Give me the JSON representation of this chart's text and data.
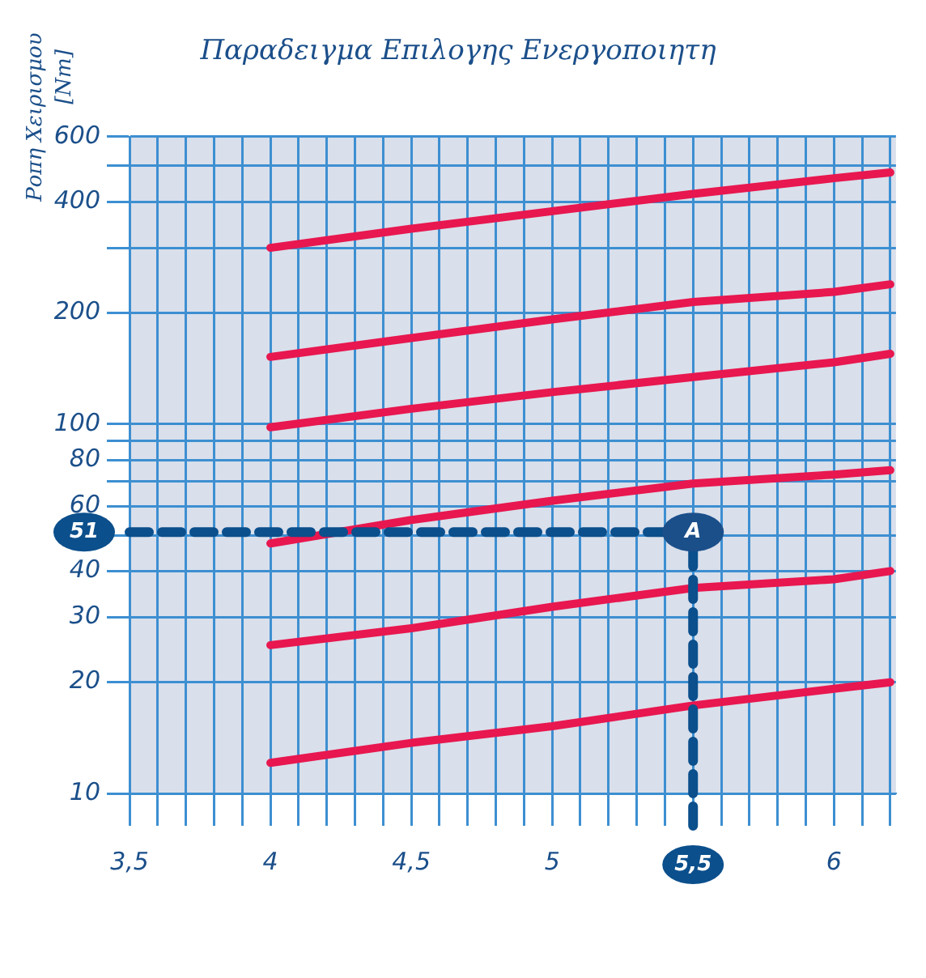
{
  "chart_data": {
    "type": "line",
    "title": "Παραδειγμα Επιλογης Ενεργοποιητη",
    "ylabel": "Ροπη Χειρισμου [Nm]",
    "x": [
      4,
      4.5,
      5,
      5.5,
      6,
      6.2
    ],
    "series": [
      {
        "color": "#e8174f",
        "values": [
          300,
          338,
          377,
          420,
          463,
          480
        ]
      },
      {
        "color": "#e8174f",
        "values": [
          152,
          171,
          192,
          214,
          228,
          239
        ]
      },
      {
        "color": "#e8174f",
        "values": [
          98,
          110,
          122,
          134,
          147,
          155
        ]
      },
      {
        "color": "#e8174f",
        "values": [
          47.5,
          55,
          62,
          69,
          73,
          75
        ]
      },
      {
        "color": "#e8174f",
        "values": [
          25.2,
          28,
          32,
          36,
          38,
          40
        ]
      },
      {
        "color": "#e8174f",
        "values": [
          12.1,
          13.7,
          15.2,
          17.3,
          19.2,
          20
        ]
      }
    ],
    "log": "y",
    "grid": true,
    "legend": false,
    "marker": "none",
    "line_style": "solid",
    "xlim": [
      3.5,
      6.22
    ],
    "xticks": [
      {
        "value": 3.5,
        "label": "3,5"
      },
      {
        "value": 3.6,
        "label": null
      },
      {
        "value": 3.7,
        "label": null
      },
      {
        "value": 3.8,
        "label": null
      },
      {
        "value": 3.9,
        "label": null
      },
      4,
      {
        "value": 4.1,
        "label": null
      },
      {
        "value": 4.2,
        "label": null
      },
      {
        "value": 4.3,
        "label": null
      },
      {
        "value": 4.4,
        "label": null
      },
      {
        "value": 4.5,
        "label": "4,5"
      },
      {
        "value": 4.6,
        "label": null
      },
      {
        "value": 4.7,
        "label": null
      },
      {
        "value": 4.8,
        "label": null
      },
      {
        "value": 4.9,
        "label": null
      },
      5,
      {
        "value": 5.1,
        "label": null
      },
      {
        "value": 5.2,
        "label": null
      },
      {
        "value": 5.3,
        "label": null
      },
      {
        "value": 5.4,
        "label": null
      },
      {
        "value": 5.5,
        "label": null
      },
      {
        "value": 5.6,
        "label": null
      },
      {
        "value": 5.7,
        "label": null
      },
      {
        "value": 5.8,
        "label": null
      },
      {
        "value": 5.9,
        "label": null
      },
      6,
      {
        "value": 6.1,
        "label": null
      },
      {
        "value": 6.2,
        "label": null
      }
    ],
    "ylim": [
      10,
      600
    ],
    "yticks": [
      10,
      20,
      30,
      40,
      {
        "value": 50,
        "label": null
      },
      60,
      {
        "value": 70,
        "label": null
      },
      80,
      {
        "value": 90,
        "label": null
      },
      100,
      200,
      {
        "value": 300,
        "label": null
      },
      400,
      {
        "value": 500,
        "label": null
      },
      600
    ],
    "ref_lines": [
      {
        "axis": "y",
        "value": 51,
        "label": "51",
        "color": "#0b4f8c",
        "line_style": "dashed"
      },
      {
        "axis": "x",
        "value": 5.5,
        "label": "5,5",
        "color": "#0b4f8c",
        "line_style": "dashed"
      }
    ],
    "annotations": [
      {
        "text": "A",
        "x": 5.5,
        "y": 51
      }
    ]
  }
}
